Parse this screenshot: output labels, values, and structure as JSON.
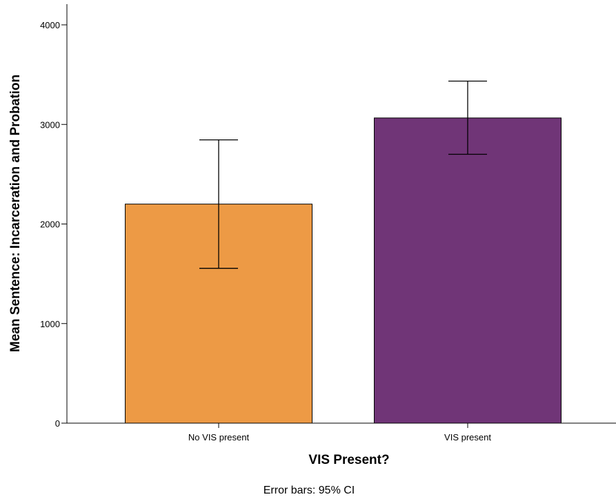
{
  "chart_data": {
    "type": "bar",
    "categories": [
      "No VIS present",
      "VIS present"
    ],
    "values": [
      2200,
      3065
    ],
    "error_bars": {
      "lower": [
        1555,
        2700
      ],
      "upper": [
        2845,
        3435
      ]
    },
    "colors": [
      "#ED9A45",
      "#703577"
    ],
    "xlabel": "VIS Present?",
    "ylabel": "Mean Sentence: Incarceration and Probation",
    "ylim": [
      0,
      4150
    ],
    "yticks": [
      0,
      1000,
      2000,
      3000,
      4000
    ],
    "ytick_labels": [
      "0",
      "1000",
      "2000",
      "3000",
      "4000"
    ],
    "footnote": "Error bars: 95% CI",
    "grid": false,
    "legend": "none"
  }
}
